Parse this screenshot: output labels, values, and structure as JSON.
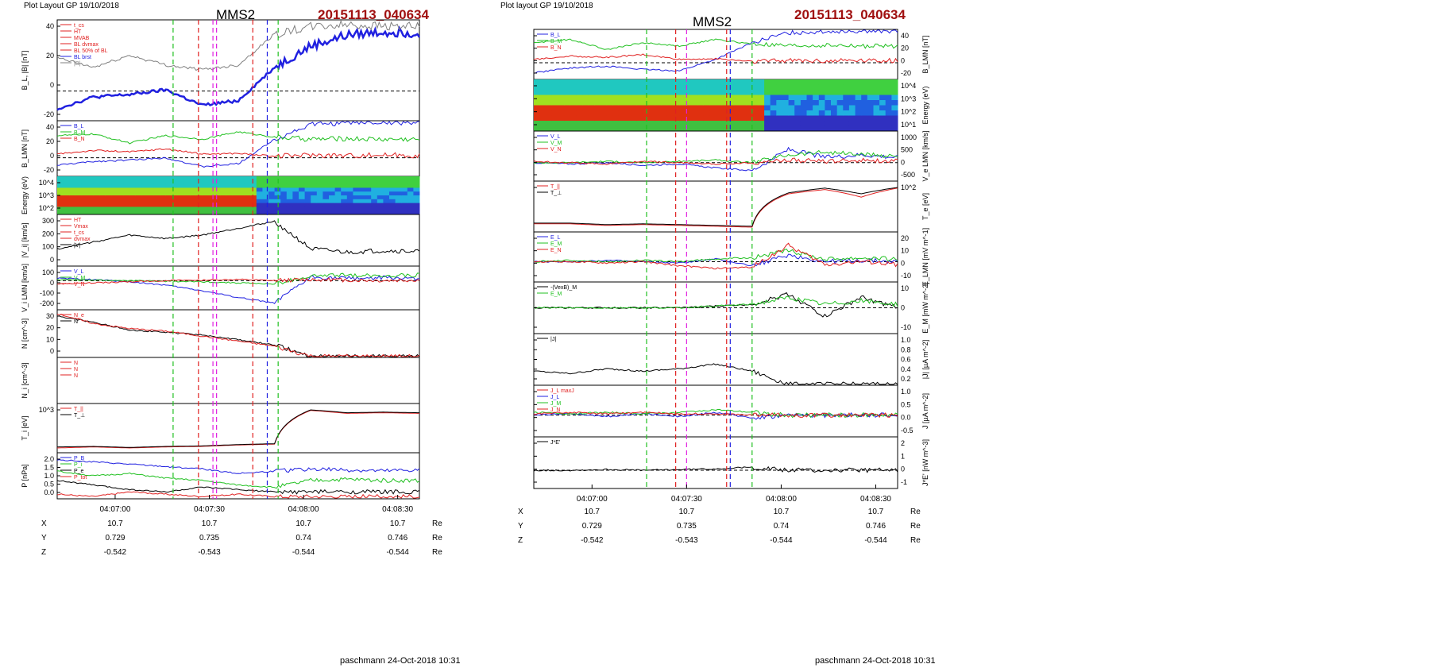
{
  "left": {
    "layout_title": "Plot Layout GP 19/10/2018",
    "spacecraft": "MMS2",
    "event_id": "20151113_040634",
    "footer": "paschmann 24-Oct-2018 10:31",
    "time_ticks": [
      "04:07:00",
      "04:07:30",
      "04:08:00",
      "04:08:30"
    ],
    "ephemeris": [
      {
        "label": "X",
        "values": [
          "10.7",
          "10.7",
          "10.7",
          "10.7"
        ],
        "unit": "Re"
      },
      {
        "label": "Y",
        "values": [
          "0.729",
          "0.735",
          "0.74",
          "0.746"
        ],
        "unit": "Re"
      },
      {
        "label": "Z",
        "values": [
          "-0.542",
          "-0.543",
          "-0.544",
          "-0.544"
        ],
        "unit": "Re"
      }
    ]
  },
  "right": {
    "layout_title": "Plot layout GP 19/10/2018",
    "spacecraft": "MMS2",
    "event_id": "20151113_040634",
    "footer": "paschmann 24-Oct-2018 10:31",
    "time_ticks": [
      "04:07:00",
      "04:07:30",
      "04:08:00",
      "04:08:30"
    ],
    "ephemeris": [
      {
        "label": "X",
        "values": [
          "10.7",
          "10.7",
          "10.7",
          "10.7"
        ],
        "unit": "Re"
      },
      {
        "label": "Y",
        "values": [
          "0.729",
          "0.735",
          "0.74",
          "0.746"
        ],
        "unit": "Re"
      },
      {
        "label": "Z",
        "values": [
          "-0.542",
          "-0.543",
          "-0.544",
          "-0.544"
        ],
        "unit": "Re"
      }
    ]
  },
  "colors": {
    "blue": "#2020e0",
    "red": "#e02020",
    "green": "#20c020",
    "black": "#000000",
    "gray": "#808080",
    "magenta": "#e020e0",
    "darkred": "#a01010"
  },
  "chart_data": [
    {
      "type": "line",
      "panel": "left-1",
      "ylabel": "B_L, |B| [nT]",
      "yticks": [
        "40",
        "20",
        "0",
        "-20"
      ],
      "ylim": [
        -25,
        60
      ],
      "legend": [
        "t_cs",
        "HT",
        "MVAB",
        "BL dvmax",
        "BL 50% of BL",
        "BL brst",
        "|B|"
      ],
      "x": [
        0,
        10,
        20,
        30,
        40,
        50,
        60,
        70,
        80,
        90,
        100
      ],
      "series": [
        {
          "name": "BL brst",
          "color": "#2020e0",
          "values": [
            -15,
            -5,
            -3,
            1,
            -12,
            -8,
            20,
            38,
            47,
            50,
            49
          ]
        },
        {
          "name": "|B|",
          "color": "#808080",
          "values": [
            28,
            20,
            30,
            22,
            18,
            22,
            48,
            54,
            56,
            55,
            54
          ]
        }
      ]
    },
    {
      "type": "line",
      "panel": "left-2",
      "ylabel": "B_LMN [nT]",
      "yticks": [
        "40",
        "20",
        "0",
        "-20"
      ],
      "ylim": [
        -25,
        50
      ],
      "legend": [
        "B_L",
        "B_M",
        "B_N"
      ],
      "x": [
        0,
        10,
        20,
        30,
        40,
        50,
        60,
        70,
        80,
        90,
        100
      ],
      "series": [
        {
          "name": "B_L",
          "color": "#2020e0",
          "values": [
            -10,
            -5,
            -3,
            0,
            -12,
            -8,
            25,
            45,
            47,
            48,
            47
          ]
        },
        {
          "name": "B_M",
          "color": "#20c020",
          "values": [
            30,
            32,
            20,
            30,
            25,
            35,
            28,
            25,
            26,
            25,
            25
          ]
        },
        {
          "name": "B_N",
          "color": "#e02020",
          "values": [
            5,
            10,
            8,
            12,
            5,
            6,
            2,
            4,
            3,
            4,
            3
          ]
        }
      ]
    },
    {
      "type": "heatmap",
      "panel": "left-3",
      "ylabel": "Energy (eV)",
      "yticks": [
        "10^4",
        "10^3",
        "10^2"
      ]
    },
    {
      "type": "line",
      "panel": "left-4",
      "ylabel": "|V_i| [km/s]",
      "yticks": [
        "300",
        "200",
        "100",
        "0"
      ],
      "ylim": [
        0,
        300
      ],
      "legend": [
        "HT",
        "Vmax",
        "t_cs",
        "dvmax",
        "|V|"
      ],
      "x": [
        0,
        10,
        20,
        30,
        40,
        50,
        60,
        70,
        80,
        90,
        100
      ],
      "series": [
        {
          "name": "|V|",
          "color": "#000000",
          "values": [
            100,
            140,
            180,
            160,
            180,
            220,
            260,
            100,
            80,
            90,
            85
          ]
        }
      ]
    },
    {
      "type": "line",
      "panel": "left-5",
      "ylabel": "V_i LMN [km/s]",
      "yticks": [
        "100",
        "0",
        "-100",
        "-200"
      ],
      "ylim": [
        -260,
        130
      ],
      "legend": [
        "V_L",
        "V_M",
        "V_N"
      ],
      "x": [
        0,
        10,
        20,
        30,
        40,
        50,
        60,
        70,
        80,
        90,
        100
      ],
      "series": [
        {
          "name": "V_L",
          "color": "#2020e0",
          "values": [
            20,
            10,
            -10,
            -40,
            -90,
            -150,
            -200,
            30,
            20,
            25,
            20
          ]
        },
        {
          "name": "V_M",
          "color": "#20c020",
          "values": [
            10,
            5,
            0,
            -5,
            -10,
            -20,
            -30,
            40,
            50,
            45,
            50
          ]
        },
        {
          "name": "V_N",
          "color": "#e02020",
          "values": [
            -30,
            -20,
            -10,
            0,
            5,
            10,
            0,
            10,
            5,
            0,
            5
          ]
        }
      ]
    },
    {
      "type": "line",
      "panel": "left-6",
      "ylabel": "N [cm^-3]",
      "yticks": [
        "30",
        "20",
        "10",
        "0"
      ],
      "ylim": [
        0,
        38
      ],
      "legend": [
        "N_e",
        "N"
      ],
      "x": [
        0,
        10,
        20,
        30,
        40,
        50,
        60,
        70,
        80,
        90,
        100
      ],
      "series": [
        {
          "name": "N",
          "color": "#000000",
          "values": [
            33,
            28,
            22,
            20,
            18,
            14,
            10,
            1,
            0.8,
            0.8,
            0.8
          ]
        },
        {
          "name": "N_e",
          "color": "#e02020",
          "values": [
            35,
            27,
            23,
            21,
            17,
            13,
            9,
            1,
            0.9,
            0.8,
            0.8
          ]
        }
      ]
    },
    {
      "type": "line",
      "panel": "left-7",
      "ylabel": "N_i [cm^-3]",
      "legend": [
        "N",
        "N",
        "N"
      ]
    },
    {
      "type": "line",
      "panel": "left-8",
      "ylabel": "T_i [eV]",
      "yticks": [
        "10^3"
      ],
      "legend": [
        "T_||",
        "T_⊥"
      ],
      "x": [
        0,
        10,
        20,
        30,
        40,
        50,
        60,
        70,
        80,
        90,
        100
      ],
      "series": [
        {
          "name": "T_||",
          "color": "#e02020",
          "values": [
            300,
            320,
            300,
            320,
            330,
            360,
            380,
            3000,
            2500,
            2600,
            2500
          ]
        },
        {
          "name": "T_⊥",
          "color": "#000000",
          "values": [
            320,
            330,
            310,
            330,
            340,
            370,
            390,
            3100,
            2600,
            2700,
            2600
          ]
        }
      ]
    },
    {
      "type": "line",
      "panel": "left-9",
      "ylabel": "P [nPa]",
      "yticks": [
        "2.0",
        "1.5",
        "1.0",
        "0.5",
        "0.0"
      ],
      "ylim": [
        0,
        2.0
      ],
      "legend": [
        "P_B",
        "P_i",
        "P_e",
        "P_tot"
      ],
      "x": [
        0,
        10,
        20,
        30,
        40,
        50,
        60,
        70,
        80,
        90,
        100
      ],
      "series": [
        {
          "name": "P_B",
          "color": "#2020e0",
          "values": [
            1.7,
            1.6,
            1.5,
            1.4,
            1.3,
            1.1,
            1.2,
            1.3,
            1.25,
            1.2,
            1.25
          ]
        },
        {
          "name": "P_i",
          "color": "#20c020",
          "values": [
            1.2,
            1.0,
            1.1,
            0.9,
            0.8,
            0.6,
            0.5,
            0.8,
            0.85,
            0.8,
            0.8
          ]
        },
        {
          "name": "P_e",
          "color": "#000000",
          "values": [
            0.8,
            0.6,
            0.4,
            0.3,
            0.5,
            0.4,
            0.3,
            0.3,
            0.3,
            0.3,
            0.3
          ]
        },
        {
          "name": "P_tot",
          "color": "#e02020",
          "values": [
            0.2,
            0.1,
            0.3,
            0.2,
            0.1,
            0.2,
            0.1,
            0.1,
            0.1,
            0.1,
            0.1
          ]
        }
      ]
    },
    {
      "type": "line",
      "panel": "right-1",
      "ylabel": "B_LMN [nT]",
      "yticks": [
        "40",
        "20",
        "0",
        "-20"
      ],
      "ylim": [
        -25,
        50
      ],
      "legend": [
        "B_L",
        "B_M",
        "B_N"
      ],
      "x": [
        0,
        10,
        20,
        30,
        40,
        50,
        60,
        70,
        80,
        90,
        100
      ],
      "series": [
        {
          "name": "B_L",
          "color": "#2020e0",
          "values": [
            -15,
            -8,
            -5,
            -10,
            -12,
            5,
            30,
            45,
            47,
            48,
            47
          ]
        },
        {
          "name": "B_M",
          "color": "#20c020",
          "values": [
            30,
            35,
            20,
            30,
            25,
            35,
            28,
            25,
            26,
            25,
            25
          ]
        },
        {
          "name": "B_N",
          "color": "#e02020",
          "values": [
            5,
            10,
            8,
            12,
            5,
            6,
            2,
            4,
            3,
            4,
            3
          ]
        }
      ]
    },
    {
      "type": "heatmap",
      "panel": "right-2",
      "ylabel": "Energy (eV)",
      "yticks": [
        "10^4",
        "10^3",
        "10^2",
        "10^1"
      ]
    },
    {
      "type": "line",
      "panel": "right-3",
      "ylabel": "V_e LMN [km/s]",
      "yticks": [
        "1000",
        "500",
        "0",
        "-500"
      ],
      "ylim": [
        -700,
        1200
      ],
      "legend": [
        "V_L",
        "V_M",
        "V_N"
      ],
      "x": [
        0,
        10,
        20,
        30,
        40,
        50,
        60,
        70,
        80,
        90,
        100
      ],
      "series": [
        {
          "name": "V_L",
          "color": "#2020e0",
          "values": [
            0,
            -50,
            0,
            -100,
            -50,
            -200,
            -300,
            500,
            200,
            300,
            200
          ]
        },
        {
          "name": "V_M",
          "color": "#20c020",
          "values": [
            0,
            0,
            50,
            0,
            50,
            100,
            0,
            300,
            400,
            300,
            250
          ]
        },
        {
          "name": "V_N",
          "color": "#e02020",
          "values": [
            50,
            0,
            -50,
            50,
            0,
            -50,
            0,
            100,
            50,
            100,
            50
          ]
        }
      ]
    },
    {
      "type": "line",
      "panel": "right-4",
      "ylabel": "T_e [eV]",
      "yticks": [
        "10^2"
      ],
      "legend": [
        "T_||",
        "T_⊥"
      ],
      "x": [
        0,
        10,
        20,
        30,
        40,
        50,
        60,
        70,
        80,
        90,
        100
      ],
      "series": [
        {
          "name": "T_||",
          "color": "#e02020",
          "values": [
            20,
            20,
            18,
            19,
            18,
            17,
            16,
            150,
            200,
            120,
            220
          ]
        },
        {
          "name": "T_⊥",
          "color": "#000000",
          "values": [
            21,
            21,
            19,
            20,
            19,
            18,
            17,
            160,
            220,
            150,
            230
          ]
        }
      ]
    },
    {
      "type": "line",
      "panel": "right-5",
      "ylabel": "E_LMN [mV m^-1]",
      "yticks": [
        "20",
        "10",
        "0",
        "-10"
      ],
      "ylim": [
        -15,
        22
      ],
      "legend": [
        "E_L",
        "E_M",
        "E_N"
      ],
      "x": [
        0,
        10,
        20,
        30,
        40,
        50,
        60,
        70,
        80,
        90,
        100
      ],
      "series": [
        {
          "name": "E_L",
          "color": "#2020e0",
          "values": [
            0,
            0,
            1,
            0,
            -1,
            2,
            -3,
            5,
            0,
            1,
            0
          ]
        },
        {
          "name": "E_M",
          "color": "#20c020",
          "values": [
            0,
            1,
            0,
            1,
            0,
            2,
            3,
            8,
            2,
            3,
            2
          ]
        },
        {
          "name": "E_N",
          "color": "#e02020",
          "values": [
            0,
            0,
            -1,
            0,
            -3,
            -5,
            -4,
            12,
            -2,
            0,
            -2
          ]
        }
      ]
    },
    {
      "type": "line",
      "panel": "right-6",
      "ylabel": "E_M [mW m^-2]",
      "yticks": [
        "10",
        "0",
        "-10"
      ],
      "ylim": [
        -15,
        15
      ],
      "legend": [
        "-(VexB)_M",
        "E_M"
      ],
      "x": [
        0,
        10,
        20,
        30,
        40,
        50,
        60,
        70,
        80,
        90,
        100
      ],
      "series": [
        {
          "name": "-(VexB)_M",
          "color": "#000000",
          "values": [
            0,
            0,
            0,
            0,
            0,
            1,
            2,
            8,
            -5,
            6,
            0
          ]
        },
        {
          "name": "E_M",
          "color": "#20c020",
          "values": [
            0,
            0,
            0,
            0,
            0,
            1,
            2,
            6,
            2,
            4,
            2
          ]
        }
      ]
    },
    {
      "type": "line",
      "panel": "right-7",
      "ylabel": "|J| [µA m^-2]",
      "yticks": [
        "1.0",
        "0.8",
        "0.6",
        "0.4",
        "0.2"
      ],
      "ylim": [
        0,
        1.1
      ],
      "legend": [
        "|J|"
      ],
      "x": [
        0,
        10,
        20,
        30,
        40,
        50,
        60,
        70,
        80,
        90,
        100
      ],
      "series": [
        {
          "name": "|J|",
          "color": "#000000",
          "values": [
            0.3,
            0.25,
            0.35,
            0.3,
            0.35,
            0.45,
            0.3,
            0.02,
            0.02,
            0.02,
            0.02
          ]
        }
      ]
    },
    {
      "type": "line",
      "panel": "right-8",
      "ylabel": "J [µA m^-2]",
      "yticks": [
        "1.0",
        "0.5",
        "0.0",
        "-0.5"
      ],
      "ylim": [
        -0.8,
        1.1
      ],
      "legend": [
        "J_L maxJ",
        "J_L",
        "J_M",
        "J_N"
      ],
      "x": [
        0,
        10,
        20,
        30,
        40,
        50,
        60,
        70,
        80,
        90,
        100
      ],
      "series": [
        {
          "name": "J_L",
          "color": "#2020e0",
          "values": [
            0,
            0.05,
            -0.05,
            0.05,
            -0.05,
            0.1,
            -0.1,
            0,
            0,
            0,
            0
          ]
        },
        {
          "name": "J_M",
          "color": "#20c020",
          "values": [
            0.1,
            0.05,
            0.1,
            0.05,
            0.1,
            0.2,
            0.1,
            0,
            0,
            0,
            0
          ]
        },
        {
          "name": "J_N",
          "color": "#e02020",
          "values": [
            0.05,
            0.1,
            0.05,
            0.1,
            0.05,
            0.05,
            0,
            0,
            0,
            0,
            0
          ]
        }
      ]
    },
    {
      "type": "line",
      "panel": "right-9",
      "ylabel": "J*E' [nW m^-3]",
      "yticks": [
        "2",
        "1",
        "0",
        "-1"
      ],
      "ylim": [
        -1.2,
        2.2
      ],
      "legend": [
        "J*E'"
      ],
      "x": [
        0,
        10,
        20,
        30,
        40,
        50,
        60,
        70,
        80,
        90,
        100
      ],
      "series": [
        {
          "name": "J*E'",
          "color": "#000000",
          "values": [
            0,
            0,
            0.05,
            0,
            0.05,
            0.1,
            0.2,
            0,
            0,
            0,
            0
          ]
        }
      ]
    }
  ]
}
